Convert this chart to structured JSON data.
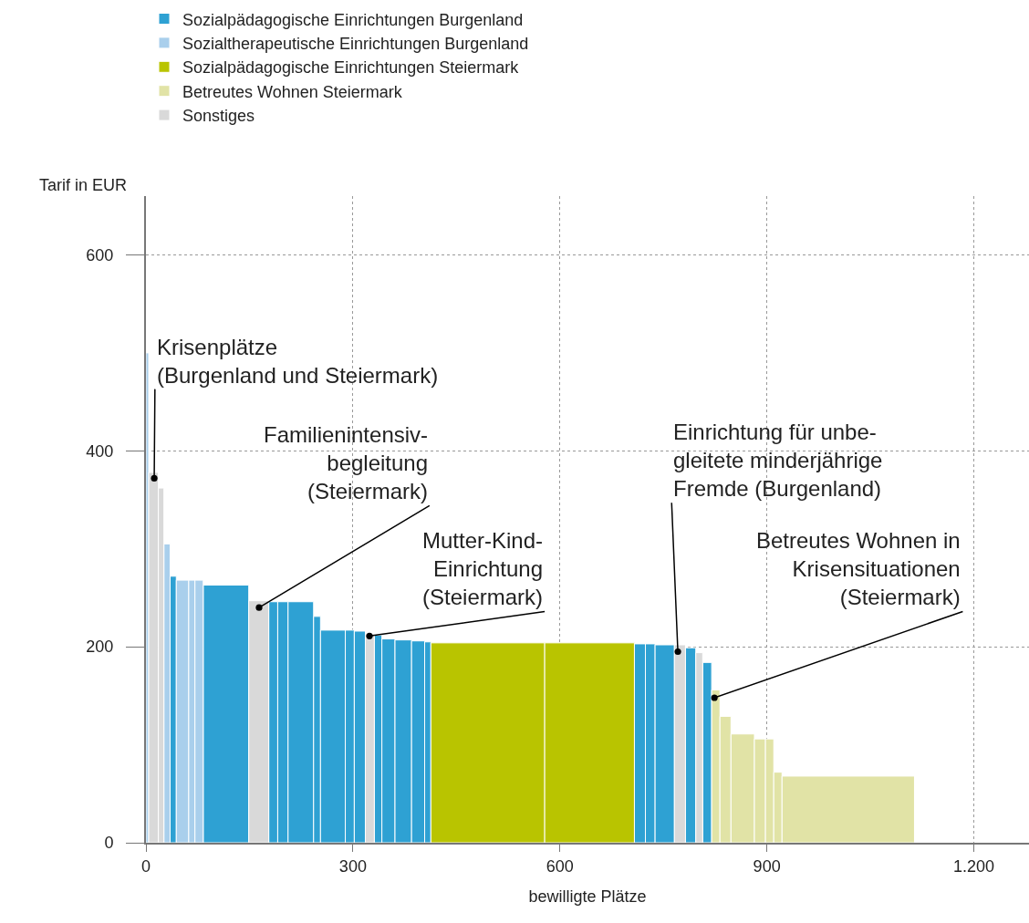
{
  "chart_data": {
    "type": "histogram",
    "xlabel": "bewilligte Plätze",
    "ylabel": "Tarif in EUR",
    "bins": [
      0,
      4,
      18,
      26,
      35,
      44,
      62,
      71,
      83,
      149,
      178,
      191,
      206,
      243,
      253,
      289,
      302,
      318,
      331,
      342,
      361,
      385,
      404,
      413,
      578,
      708,
      724,
      738,
      766,
      782,
      797,
      807,
      820,
      832,
      848,
      882,
      898,
      910,
      922,
      1114
    ],
    "series": [
      {
        "name": "Sozialpädagogische Einrichtungen Burgenland",
        "color": "#2ea1d3",
        "values": [
          null,
          null,
          null,
          null,
          272,
          null,
          null,
          null,
          263,
          null,
          246,
          246,
          246,
          231,
          217,
          217,
          216,
          null,
          212,
          208,
          207,
          206,
          205,
          null,
          null,
          203,
          203,
          202,
          null,
          199,
          null,
          184,
          null,
          null,
          null,
          null,
          null,
          null,
          null
        ]
      },
      {
        "name": "Sozialtherapeutische Einrichtungen Burgenland",
        "color": "#a9cfec",
        "values": [
          500,
          null,
          null,
          305,
          null,
          268,
          268,
          268,
          null,
          null,
          null,
          null,
          null,
          null,
          null,
          null,
          null,
          null,
          null,
          null,
          null,
          null,
          null,
          null,
          null,
          null,
          null,
          null,
          null,
          null,
          null,
          null,
          null,
          null,
          null,
          null,
          null,
          null,
          null
        ]
      },
      {
        "name": "Sozialpädagogische Einrichtungen Steiermark",
        "color": "#b9c400",
        "values": [
          null,
          null,
          null,
          null,
          null,
          null,
          null,
          null,
          null,
          null,
          null,
          null,
          null,
          null,
          null,
          null,
          null,
          null,
          null,
          null,
          null,
          null,
          null,
          204,
          204,
          null,
          null,
          null,
          null,
          null,
          null,
          null,
          null,
          null,
          null,
          null,
          null,
          null,
          null
        ]
      },
      {
        "name": "Betreutes Wohnen Steiermark",
        "color": "#e1e3a6",
        "values": [
          null,
          null,
          null,
          null,
          null,
          null,
          null,
          null,
          null,
          null,
          null,
          null,
          null,
          null,
          null,
          null,
          null,
          null,
          null,
          null,
          null,
          null,
          null,
          null,
          null,
          null,
          null,
          null,
          null,
          null,
          null,
          null,
          156,
          129,
          111,
          106,
          106,
          72,
          68
        ]
      },
      {
        "name": "Sonstiges",
        "color": "#d9d9d9",
        "values": [
          null,
          378,
          362,
          null,
          null,
          null,
          null,
          null,
          null,
          247,
          null,
          null,
          null,
          null,
          null,
          null,
          null,
          213,
          null,
          null,
          null,
          null,
          null,
          null,
          null,
          null,
          null,
          null,
          202,
          null,
          194,
          null,
          null,
          null,
          null,
          null,
          null,
          null,
          null
        ]
      }
    ],
    "xlim": [
      0,
      1280
    ],
    "ylim": [
      0,
      660
    ],
    "xticks": [
      0,
      300,
      600,
      900,
      {
        "value": 1200,
        "label": "1.200"
      }
    ],
    "yticks": [
      0,
      200,
      400,
      600
    ],
    "grid": true,
    "legend": "top left",
    "annotations": [
      {
        "text": "Krisenplätze\n(Burgenland und Steiermark)",
        "x": 12,
        "y": 372
      },
      {
        "text": "Familienintensiv-\nbegleitung\n(Steiermark)",
        "x": 164,
        "y": 240
      },
      {
        "text": "Mutter-Kind-\nEinrichtung\n(Steiermark)",
        "x": 324,
        "y": 211
      },
      {
        "text": "Einrichtung für unbe-\ngleitete minderjährige\nFremde (Burgenland)",
        "x": 771,
        "y": 195
      },
      {
        "text": "Betreutes Wohnen in\nKrisensituationen\n(Steiermark)",
        "x": 824,
        "y": 148
      }
    ]
  }
}
